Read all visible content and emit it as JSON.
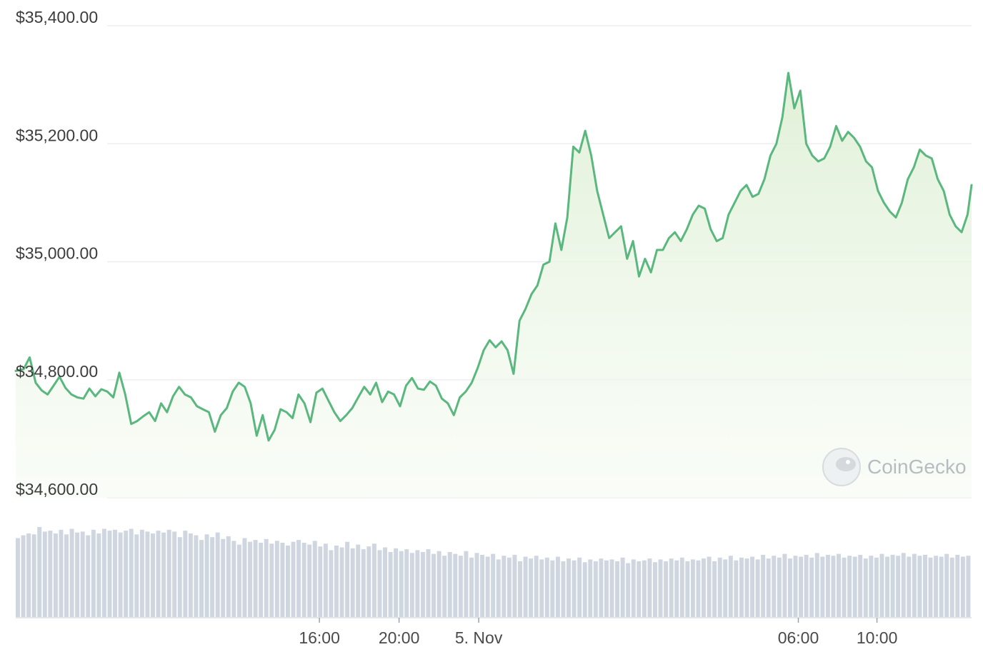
{
  "chart_data": {
    "type": "line",
    "title": "",
    "xlabel": "",
    "ylabel": "",
    "ylim": [
      34600,
      35400
    ],
    "y_ticks": [
      {
        "value": 35400,
        "label": "$35,400.00"
      },
      {
        "value": 35200,
        "label": "$35,200.00"
      },
      {
        "value": 35000,
        "label": "$35,000.00"
      },
      {
        "value": 34800,
        "label": "$34,800.00"
      },
      {
        "value": 34600,
        "label": "$34,600.00"
      }
    ],
    "x_ticks": [
      "16:00",
      "20:00",
      "5. Nov",
      "06:00",
      "10:00"
    ],
    "grid": true,
    "legend": "none",
    "watermark": "CoinGecko",
    "colors": {
      "line": "#5ab77e",
      "fill": "#e9f5e2",
      "volume": "#cfd6df",
      "grid": "#eeeeee"
    },
    "price_series": {
      "name": "",
      "points": [
        [
          0.0,
          34815
        ],
        [
          0.4,
          34818
        ],
        [
          0.7,
          34838
        ],
        [
          1.0,
          34795
        ],
        [
          1.3,
          34782
        ],
        [
          1.6,
          34775
        ],
        [
          1.9,
          34790
        ],
        [
          2.2,
          34805
        ],
        [
          2.5,
          34786
        ],
        [
          2.8,
          34775
        ],
        [
          3.1,
          34770
        ],
        [
          3.4,
          34768
        ],
        [
          3.7,
          34785
        ],
        [
          4.0,
          34772
        ],
        [
          4.3,
          34784
        ],
        [
          4.6,
          34780
        ],
        [
          4.9,
          34770
        ],
        [
          5.2,
          34812
        ],
        [
          5.5,
          34775
        ],
        [
          5.8,
          34725
        ],
        [
          6.1,
          34730
        ],
        [
          6.4,
          34738
        ],
        [
          6.7,
          34745
        ],
        [
          7.0,
          34730
        ],
        [
          7.3,
          34760
        ],
        [
          7.6,
          34745
        ],
        [
          7.9,
          34772
        ],
        [
          8.2,
          34788
        ],
        [
          8.5,
          34775
        ],
        [
          8.8,
          34770
        ],
        [
          9.1,
          34755
        ],
        [
          9.4,
          34750
        ],
        [
          9.7,
          34745
        ],
        [
          10.0,
          34712
        ],
        [
          10.3,
          34740
        ],
        [
          10.6,
          34752
        ],
        [
          10.9,
          34780
        ],
        [
          11.2,
          34795
        ],
        [
          11.5,
          34788
        ],
        [
          11.8,
          34760
        ],
        [
          12.1,
          34705
        ],
        [
          12.4,
          34740
        ],
        [
          12.7,
          34697
        ],
        [
          13.0,
          34715
        ],
        [
          13.3,
          34750
        ],
        [
          13.6,
          34745
        ],
        [
          13.9,
          34735
        ],
        [
          14.2,
          34775
        ],
        [
          14.5,
          34760
        ],
        [
          14.8,
          34728
        ],
        [
          15.1,
          34778
        ],
        [
          15.4,
          34785
        ],
        [
          15.7,
          34765
        ],
        [
          16.0,
          34745
        ],
        [
          16.3,
          34730
        ],
        [
          16.6,
          34740
        ],
        [
          16.9,
          34752
        ],
        [
          17.2,
          34770
        ],
        [
          17.5,
          34788
        ],
        [
          17.8,
          34775
        ],
        [
          18.1,
          34795
        ],
        [
          18.4,
          34762
        ],
        [
          18.7,
          34780
        ],
        [
          19.0,
          34775
        ],
        [
          19.3,
          34755
        ],
        [
          19.6,
          34790
        ],
        [
          19.9,
          34803
        ],
        [
          20.2,
          34785
        ],
        [
          20.5,
          34783
        ],
        [
          20.8,
          34797
        ],
        [
          21.1,
          34790
        ],
        [
          21.4,
          34768
        ],
        [
          21.7,
          34760
        ],
        [
          22.0,
          34740
        ],
        [
          22.3,
          34770
        ],
        [
          22.6,
          34780
        ],
        [
          22.9,
          34795
        ],
        [
          23.2,
          34820
        ],
        [
          23.5,
          34850
        ],
        [
          23.8,
          34867
        ],
        [
          24.1,
          34855
        ],
        [
          24.4,
          34865
        ],
        [
          24.7,
          34850
        ],
        [
          25.0,
          34810
        ],
        [
          25.3,
          34900
        ],
        [
          25.6,
          34920
        ],
        [
          25.9,
          34945
        ],
        [
          26.2,
          34960
        ],
        [
          26.5,
          34995
        ],
        [
          26.8,
          35000
        ],
        [
          27.1,
          35065
        ],
        [
          27.4,
          35020
        ],
        [
          27.7,
          35075
        ],
        [
          28.0,
          35195
        ],
        [
          28.3,
          35185
        ],
        [
          28.6,
          35222
        ],
        [
          28.9,
          35180
        ],
        [
          29.2,
          35120
        ],
        [
          29.5,
          35080
        ],
        [
          29.8,
          35040
        ],
        [
          30.1,
          35050
        ],
        [
          30.4,
          35060
        ],
        [
          30.7,
          35005
        ],
        [
          31.0,
          35035
        ],
        [
          31.3,
          34975
        ],
        [
          31.6,
          35005
        ],
        [
          31.9,
          34982
        ],
        [
          32.2,
          35020
        ],
        [
          32.5,
          35020
        ],
        [
          32.8,
          35040
        ],
        [
          33.1,
          35050
        ],
        [
          33.4,
          35035
        ],
        [
          33.7,
          35055
        ],
        [
          34.0,
          35080
        ],
        [
          34.3,
          35095
        ],
        [
          34.6,
          35090
        ],
        [
          34.9,
          35055
        ],
        [
          35.2,
          35035
        ],
        [
          35.5,
          35040
        ],
        [
          35.8,
          35080
        ],
        [
          36.1,
          35100
        ],
        [
          36.4,
          35120
        ],
        [
          36.7,
          35130
        ],
        [
          37.0,
          35110
        ],
        [
          37.3,
          35115
        ],
        [
          37.6,
          35140
        ],
        [
          37.9,
          35180
        ],
        [
          38.2,
          35200
        ],
        [
          38.5,
          35245
        ],
        [
          38.8,
          35320
        ],
        [
          39.1,
          35260
        ],
        [
          39.4,
          35290
        ],
        [
          39.7,
          35200
        ],
        [
          40.0,
          35180
        ],
        [
          40.3,
          35170
        ],
        [
          40.6,
          35175
        ],
        [
          40.9,
          35195
        ],
        [
          41.2,
          35230
        ],
        [
          41.5,
          35205
        ],
        [
          41.8,
          35220
        ],
        [
          42.1,
          35210
        ],
        [
          42.4,
          35195
        ],
        [
          42.7,
          35170
        ],
        [
          43.0,
          35160
        ],
        [
          43.3,
          35120
        ],
        [
          43.6,
          35100
        ],
        [
          43.9,
          35085
        ],
        [
          44.2,
          35075
        ],
        [
          44.5,
          35100
        ],
        [
          44.8,
          35140
        ],
        [
          45.1,
          35160
        ],
        [
          45.4,
          35190
        ],
        [
          45.7,
          35180
        ],
        [
          46.0,
          35175
        ],
        [
          46.3,
          35140
        ],
        [
          46.6,
          35120
        ],
        [
          46.9,
          35080
        ],
        [
          47.2,
          35060
        ],
        [
          47.5,
          35050
        ],
        [
          47.8,
          35080
        ],
        [
          48.0,
          35130
        ]
      ]
    },
    "volume_bars": {
      "name": "",
      "values": [
        0.85,
        0.88,
        0.9,
        0.89,
        0.97,
        0.92,
        0.93,
        0.9,
        0.94,
        0.89,
        0.95,
        0.91,
        0.92,
        0.88,
        0.94,
        0.9,
        0.95,
        0.93,
        0.94,
        0.91,
        0.93,
        0.95,
        0.89,
        0.94,
        0.92,
        0.9,
        0.93,
        0.91,
        0.94,
        0.92,
        0.86,
        0.93,
        0.9,
        0.88,
        0.83,
        0.89,
        0.86,
        0.91,
        0.84,
        0.87,
        0.82,
        0.78,
        0.85,
        0.81,
        0.83,
        0.8,
        0.84,
        0.79,
        0.82,
        0.8,
        0.77,
        0.81,
        0.83,
        0.8,
        0.78,
        0.82,
        0.76,
        0.79,
        0.72,
        0.77,
        0.75,
        0.81,
        0.74,
        0.78,
        0.73,
        0.76,
        0.79,
        0.72,
        0.75,
        0.7,
        0.74,
        0.71,
        0.73,
        0.69,
        0.72,
        0.7,
        0.73,
        0.68,
        0.71,
        0.66,
        0.7,
        0.68,
        0.66,
        0.71,
        0.64,
        0.69,
        0.67,
        0.65,
        0.68,
        0.62,
        0.66,
        0.64,
        0.67,
        0.6,
        0.65,
        0.63,
        0.66,
        0.62,
        0.64,
        0.61,
        0.65,
        0.6,
        0.63,
        0.61,
        0.64,
        0.59,
        0.62,
        0.6,
        0.63,
        0.61,
        0.62,
        0.6,
        0.64,
        0.58,
        0.62,
        0.6,
        0.61,
        0.63,
        0.59,
        0.62,
        0.6,
        0.63,
        0.61,
        0.64,
        0.6,
        0.62,
        0.61,
        0.63,
        0.65,
        0.6,
        0.64,
        0.62,
        0.66,
        0.61,
        0.64,
        0.63,
        0.65,
        0.62,
        0.67,
        0.63,
        0.66,
        0.64,
        0.68,
        0.63,
        0.66,
        0.65,
        0.67,
        0.64,
        0.69,
        0.65,
        0.67,
        0.66,
        0.68,
        0.64,
        0.66,
        0.65,
        0.67,
        0.63,
        0.66,
        0.64,
        0.68,
        0.65,
        0.67,
        0.66,
        0.69,
        0.65,
        0.68,
        0.66,
        0.67,
        0.64,
        0.66,
        0.65,
        0.68,
        0.64,
        0.67,
        0.65,
        0.66
      ]
    }
  }
}
